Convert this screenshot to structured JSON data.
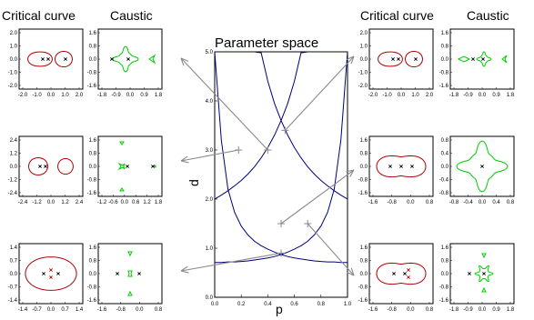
{
  "headers": {
    "left_critical": "Critical curve",
    "left_caustic": "Caustic",
    "right_critical": "Critical curve",
    "right_caustic": "Caustic"
  },
  "center": {
    "title": "Parameter space",
    "xlabel": "p",
    "ylabel": "d",
    "xticks": [
      "0.0",
      "0.2",
      "0.4",
      "0.6",
      "0.8",
      "1.0"
    ],
    "yticks": [
      "0.0",
      "1.0",
      "2.0",
      "3.0",
      "4.0",
      "5.0"
    ]
  },
  "colors": {
    "critical": "#b00000",
    "caustic": "#00cc00",
    "boundary": "#00007a",
    "arrow": "#8a8a8a"
  },
  "chart_data": [
    {
      "type": "line",
      "title": "Parameter space",
      "xlabel": "p",
      "ylabel": "d",
      "xlim": [
        0,
        1
      ],
      "ylim": [
        0,
        5
      ],
      "series": [
        {
          "x": [
            0.0,
            0.05,
            0.1,
            0.15,
            0.2,
            0.25,
            0.3,
            0.35,
            0.4,
            0.45,
            0.5,
            0.55,
            0.6,
            0.65,
            0.7,
            0.75,
            0.8,
            0.85,
            0.9,
            0.95,
            1.0
          ],
          "y": [
            0.71,
            0.71,
            0.72,
            0.72,
            0.73,
            0.74,
            0.76,
            0.78,
            0.8,
            0.83,
            0.87,
            0.92,
            0.98,
            1.05,
            1.14,
            1.27,
            1.45,
            1.73,
            2.2,
            3.2,
            5.0
          ]
        },
        {
          "x": [
            0.0,
            0.05,
            0.1,
            0.15,
            0.2,
            0.25,
            0.3,
            0.35,
            0.4,
            0.45,
            0.5,
            0.55,
            0.6,
            0.65,
            0.7,
            0.75,
            0.8,
            0.85,
            0.9,
            0.95,
            1.0
          ],
          "y": [
            5.0,
            3.2,
            2.2,
            1.73,
            1.45,
            1.27,
            1.14,
            1.05,
            0.98,
            0.92,
            0.87,
            0.83,
            0.8,
            0.78,
            0.76,
            0.74,
            0.73,
            0.72,
            0.72,
            0.71,
            0.71
          ]
        },
        {
          "x": [
            0.0,
            0.05,
            0.1,
            0.15,
            0.2,
            0.25,
            0.3,
            0.35,
            0.4,
            0.45,
            0.5,
            0.55,
            0.6,
            0.65,
            0.7,
            0.75,
            0.8,
            0.85,
            0.9,
            0.95,
            1.0
          ],
          "y": [
            2.0,
            2.08,
            2.17,
            2.27,
            2.38,
            2.51,
            2.66,
            2.84,
            3.05,
            3.3,
            3.6,
            3.95,
            4.4,
            4.98,
            5.0,
            5.0,
            5.0,
            5.0,
            5.0,
            5.0,
            5.0
          ]
        },
        {
          "x": [
            0.0,
            0.05,
            0.1,
            0.15,
            0.2,
            0.25,
            0.3,
            0.35,
            0.4,
            0.45,
            0.5,
            0.55,
            0.6,
            0.65,
            0.7,
            0.75,
            0.8,
            0.85,
            0.9,
            0.95,
            1.0
          ],
          "y": [
            5.0,
            5.0,
            5.0,
            5.0,
            5.0,
            5.0,
            5.0,
            4.98,
            4.4,
            3.95,
            3.6,
            3.3,
            3.05,
            2.84,
            2.66,
            2.51,
            2.38,
            2.27,
            2.17,
            2.08,
            2.0
          ]
        }
      ],
      "markers": [
        {
          "x": 0.18,
          "y": 3.0
        },
        {
          "x": 0.4,
          "y": 3.0
        },
        {
          "x": 0.5,
          "y": 0.9
        },
        {
          "x": 0.5,
          "y": 1.5
        },
        {
          "x": 0.7,
          "y": 1.5
        },
        {
          "x": 0.53,
          "y": 3.4
        }
      ]
    }
  ],
  "small_panels": [
    {
      "id": "L1",
      "kind": "critical",
      "xticks": [
        "-2.0",
        "-1.0",
        "0.0",
        "1.0",
        "2.0"
      ],
      "yticks": [
        "-2.0",
        "-1.0",
        "0.0",
        "1.0",
        "2.0"
      ]
    },
    {
      "id": "L1c",
      "kind": "caustic",
      "xticks": [
        "-1.8",
        "-0.9",
        "0.0",
        "0.9",
        "1.8"
      ],
      "yticks": [
        "-1.6",
        "-0.8",
        "0.0",
        "0.8",
        "1.6"
      ]
    },
    {
      "id": "L2",
      "kind": "critical",
      "xticks": [
        "-2.4",
        "-1.2",
        "0.0",
        "1.2",
        "2.4"
      ],
      "yticks": [
        "-2.4",
        "-1.2",
        "0.0",
        "1.2",
        "2.4"
      ]
    },
    {
      "id": "L2c",
      "kind": "caustic",
      "xticks": [
        "-1.2",
        "-0.6",
        "0.0",
        "0.6",
        "1.2",
        "1.8"
      ],
      "yticks": [
        "-1.6",
        "-0.8",
        "0.0",
        "0.8",
        "1.6"
      ]
    },
    {
      "id": "L3",
      "kind": "critical",
      "xticks": [
        "-1.4",
        "-0.7",
        "0.0",
        "0.7",
        "1.4"
      ],
      "yticks": [
        "-1.4",
        "-0.7",
        "0.0",
        "0.7",
        "1.4"
      ]
    },
    {
      "id": "L3c",
      "kind": "caustic",
      "xticks": [
        "-1.6",
        "-0.8",
        "0.0",
        "0.8"
      ],
      "yticks": [
        "-1.6",
        "-0.8",
        "0.0",
        "0.8",
        "1.6"
      ]
    },
    {
      "id": "R1",
      "kind": "critical",
      "xticks": [
        "-2.0",
        "-1.0",
        "0.0",
        "1.0",
        "2.0"
      ],
      "yticks": [
        "-2.0",
        "-1.0",
        "0.0",
        "1.0",
        "2.0"
      ]
    },
    {
      "id": "R1c",
      "kind": "caustic",
      "xticks": [
        "-1.8",
        "-0.9",
        "0.0",
        "0.9",
        "1.8"
      ],
      "yticks": [
        "-1.6",
        "-0.8",
        "0.0",
        "0.8",
        "1.6"
      ]
    },
    {
      "id": "R2",
      "kind": "critical",
      "xticks": [
        "-1.6",
        "-0.8",
        "0.0",
        "0.8"
      ],
      "yticks": [
        "-1.6",
        "-0.8",
        "0.0",
        "0.8",
        "1.6"
      ]
    },
    {
      "id": "R2c",
      "kind": "caustic",
      "xticks": [
        "-0.8",
        "-0.4",
        "0.0",
        "0.4",
        "0.8"
      ],
      "yticks": [
        "-0.8",
        "-0.4",
        "0.0",
        "0.4",
        "0.8"
      ]
    },
    {
      "id": "R3",
      "kind": "critical",
      "xticks": [
        "-1.6",
        "-0.8",
        "0.0",
        "0.8"
      ],
      "yticks": [
        "-1.6",
        "-0.8",
        "0.0",
        "0.8",
        "1.6"
      ]
    },
    {
      "id": "R3c",
      "kind": "caustic",
      "xticks": [
        "-1.8",
        "-0.9",
        "0.0",
        "0.9",
        "1.8"
      ],
      "yticks": [
        "-1.6",
        "-0.8",
        "0.0",
        "0.8",
        "1.6"
      ]
    }
  ]
}
